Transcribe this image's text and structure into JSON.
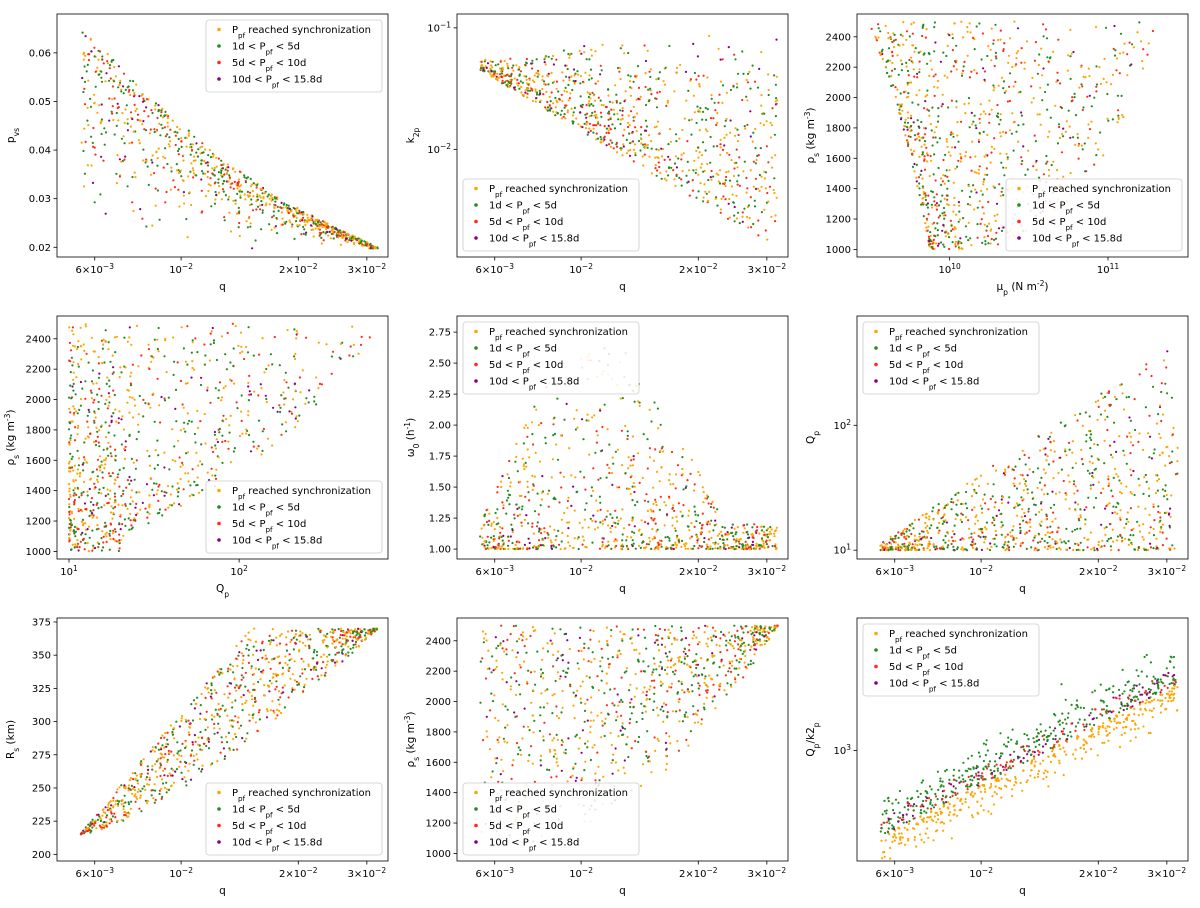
{
  "legend_entries": [
    "P_pf reached synchronization",
    "1d < P_pf < 5d",
    "5d < P_pf < 10d",
    "10d < P_pf < 15.8d"
  ],
  "colors": {
    "sync": "#FFA500",
    "series1": "#228B22",
    "series2": "#FF2A1A",
    "series3": "#8B0080"
  },
  "chart_data": [
    {
      "type": "scatter",
      "id": "p1",
      "xlabel": "q",
      "ylabel": "p_{v_s}",
      "xscale": "log",
      "yscale": "linear",
      "xlim": [
        0.0048,
        0.034
      ],
      "ylim": [
        0.018,
        0.068
      ],
      "xticks": [
        {
          "v": 0.006,
          "mant": "6",
          "exp": "-3"
        },
        {
          "v": 0.01,
          "mant": "",
          "exp": "-2"
        },
        {
          "v": 0.02,
          "mant": "2",
          "exp": "-2"
        },
        {
          "v": 0.03,
          "mant": "3",
          "exp": "-2"
        }
      ],
      "yticks": [
        {
          "v": 0.02,
          "label": "0.02"
        },
        {
          "v": 0.03,
          "label": "0.03"
        },
        {
          "v": 0.04,
          "label": "0.04"
        },
        {
          "v": 0.05,
          "label": "0.05"
        },
        {
          "v": 0.06,
          "label": "0.06"
        }
      ],
      "legend": "top-right",
      "boundary_x": [
        0.0055,
        0.008,
        0.012,
        0.018,
        0.025,
        0.032
      ],
      "boundary_y": [
        0.066,
        0.052,
        0.04,
        0.03,
        0.024,
        0.02
      ]
    },
    {
      "type": "scatter",
      "id": "p2",
      "xlabel": "q",
      "ylabel": "k_{2p}",
      "xscale": "log",
      "yscale": "log",
      "xlim": [
        0.0048,
        0.034
      ],
      "ylim": [
        0.0013,
        0.13
      ],
      "xticks": [
        {
          "v": 0.006,
          "mant": "6",
          "exp": "-3"
        },
        {
          "v": 0.01,
          "mant": "",
          "exp": "-2"
        },
        {
          "v": 0.02,
          "mant": "2",
          "exp": "-2"
        },
        {
          "v": 0.03,
          "mant": "3",
          "exp": "-2"
        }
      ],
      "yticks": [
        {
          "v": 0.1,
          "mant": "",
          "exp": "-1"
        },
        {
          "v": 0.01,
          "mant": "",
          "exp": "-2"
        }
      ],
      "legend": "bottom-left",
      "envelope_upper": [
        [
          0.0055,
          0.055
        ],
        [
          0.032,
          0.105
        ]
      ],
      "envelope_lower": [
        [
          0.0055,
          0.045
        ],
        [
          0.032,
          0.0015
        ]
      ]
    },
    {
      "type": "scatter",
      "id": "p3",
      "xlabel": "μ_p (N m^{-2})",
      "ylabel": "ρ_s (kg m^{-3})",
      "xscale": "log",
      "yscale": "linear",
      "xlim": [
        2600000000.0,
        320000000000.0
      ],
      "ylim": [
        950,
        2550
      ],
      "xticks": [
        {
          "v": 10000000000.0,
          "mant": "",
          "exp": "10"
        },
        {
          "v": 100000000000.0,
          "mant": "",
          "exp": "11"
        }
      ],
      "yticks": [
        {
          "v": 1000,
          "label": "1000"
        },
        {
          "v": 1200,
          "label": "1200"
        },
        {
          "v": 1400,
          "label": "1400"
        },
        {
          "v": 1600,
          "label": "1600"
        },
        {
          "v": 1800,
          "label": "1800"
        },
        {
          "v": 2000,
          "label": "2000"
        },
        {
          "v": 2200,
          "label": "2200"
        },
        {
          "v": 2400,
          "label": "2400"
        }
      ],
      "legend": "bottom-right"
    },
    {
      "type": "scatter",
      "id": "p4",
      "xlabel": "Q_p",
      "ylabel": "ρ_s (kg m^{-3})",
      "xscale": "log",
      "yscale": "linear",
      "xlim": [
        8.5,
        750
      ],
      "ylim": [
        950,
        2550
      ],
      "xticks": [
        {
          "v": 10,
          "mant": "",
          "exp": "1"
        },
        {
          "v": 100,
          "mant": "",
          "exp": "2"
        }
      ],
      "yticks": [
        {
          "v": 1000,
          "label": "1000"
        },
        {
          "v": 1200,
          "label": "1200"
        },
        {
          "v": 1400,
          "label": "1400"
        },
        {
          "v": 1600,
          "label": "1600"
        },
        {
          "v": 1800,
          "label": "1800"
        },
        {
          "v": 2000,
          "label": "2000"
        },
        {
          "v": 2200,
          "label": "2200"
        },
        {
          "v": 2400,
          "label": "2400"
        }
      ],
      "legend": "bottom-right"
    },
    {
      "type": "scatter",
      "id": "p5",
      "xlabel": "q",
      "ylabel": "ω_0 (h^{-1})",
      "xscale": "log",
      "yscale": "linear",
      "xlim": [
        0.0048,
        0.034
      ],
      "ylim": [
        0.92,
        2.88
      ],
      "xticks": [
        {
          "v": 0.006,
          "mant": "6",
          "exp": "-3"
        },
        {
          "v": 0.01,
          "mant": "",
          "exp": "-2"
        },
        {
          "v": 0.02,
          "mant": "2",
          "exp": "-2"
        },
        {
          "v": 0.03,
          "mant": "3",
          "exp": "-2"
        }
      ],
      "yticks": [
        {
          "v": 1.0,
          "label": "1.00"
        },
        {
          "v": 1.25,
          "label": "1.25"
        },
        {
          "v": 1.5,
          "label": "1.50"
        },
        {
          "v": 1.75,
          "label": "1.75"
        },
        {
          "v": 2.0,
          "label": "2.00"
        },
        {
          "v": 2.25,
          "label": "2.25"
        },
        {
          "v": 2.5,
          "label": "2.50"
        },
        {
          "v": 2.75,
          "label": "2.75"
        }
      ],
      "legend": "top-left"
    },
    {
      "type": "scatter",
      "id": "p6",
      "xlabel": "q",
      "ylabel": "Q_p",
      "xscale": "log",
      "yscale": "log",
      "xlim": [
        0.0048,
        0.034
      ],
      "ylim": [
        8.5,
        750
      ],
      "xticks": [
        {
          "v": 0.006,
          "mant": "6",
          "exp": "-3"
        },
        {
          "v": 0.01,
          "mant": "",
          "exp": "-2"
        },
        {
          "v": 0.02,
          "mant": "2",
          "exp": "-2"
        },
        {
          "v": 0.03,
          "mant": "3",
          "exp": "-2"
        }
      ],
      "yticks": [
        {
          "v": 10,
          "mant": "",
          "exp": "1"
        },
        {
          "v": 100,
          "mant": "",
          "exp": "2"
        }
      ],
      "legend": "top-left"
    },
    {
      "type": "scatter",
      "id": "p7",
      "xlabel": "q",
      "ylabel": "R_s (km)",
      "xscale": "log",
      "yscale": "linear",
      "xlim": [
        0.0048,
        0.034
      ],
      "ylim": [
        195,
        378
      ],
      "xticks": [
        {
          "v": 0.006,
          "mant": "6",
          "exp": "-3"
        },
        {
          "v": 0.01,
          "mant": "",
          "exp": "-2"
        },
        {
          "v": 0.02,
          "mant": "2",
          "exp": "-2"
        },
        {
          "v": 0.03,
          "mant": "3",
          "exp": "-2"
        }
      ],
      "yticks": [
        {
          "v": 200,
          "label": "200"
        },
        {
          "v": 225,
          "label": "225"
        },
        {
          "v": 250,
          "label": "250"
        },
        {
          "v": 275,
          "label": "275"
        },
        {
          "v": 300,
          "label": "300"
        },
        {
          "v": 325,
          "label": "325"
        },
        {
          "v": 350,
          "label": "350"
        },
        {
          "v": 375,
          "label": "375"
        }
      ],
      "legend": "bottom-right"
    },
    {
      "type": "scatter",
      "id": "p8",
      "xlabel": "q",
      "ylabel": "ρ_s (kg m^{-3})",
      "xscale": "log",
      "yscale": "linear",
      "xlim": [
        0.0048,
        0.034
      ],
      "ylim": [
        950,
        2550
      ],
      "xticks": [
        {
          "v": 0.006,
          "mant": "6",
          "exp": "-3"
        },
        {
          "v": 0.01,
          "mant": "",
          "exp": "-2"
        },
        {
          "v": 0.02,
          "mant": "2",
          "exp": "-2"
        },
        {
          "v": 0.03,
          "mant": "3",
          "exp": "-2"
        }
      ],
      "yticks": [
        {
          "v": 1000,
          "label": "1000"
        },
        {
          "v": 1200,
          "label": "1200"
        },
        {
          "v": 1400,
          "label": "1400"
        },
        {
          "v": 1600,
          "label": "1600"
        },
        {
          "v": 1800,
          "label": "1800"
        },
        {
          "v": 2000,
          "label": "2000"
        },
        {
          "v": 2200,
          "label": "2200"
        },
        {
          "v": 2400,
          "label": "2400"
        }
      ],
      "legend": "bottom-left"
    },
    {
      "type": "scatter",
      "id": "p9",
      "xlabel": "q",
      "ylabel": "Q_p/k2_p",
      "xscale": "log",
      "yscale": "log",
      "xlim": [
        0.0048,
        0.034
      ],
      "ylim": [
        160,
        9000
      ],
      "xticks": [
        {
          "v": 0.006,
          "mant": "6",
          "exp": "-3"
        },
        {
          "v": 0.01,
          "mant": "",
          "exp": "-2"
        },
        {
          "v": 0.02,
          "mant": "2",
          "exp": "-2"
        },
        {
          "v": 0.03,
          "mant": "3",
          "exp": "-2"
        }
      ],
      "yticks": [
        {
          "v": 1000,
          "mant": "",
          "exp": "3"
        }
      ],
      "legend": "top-left"
    }
  ]
}
